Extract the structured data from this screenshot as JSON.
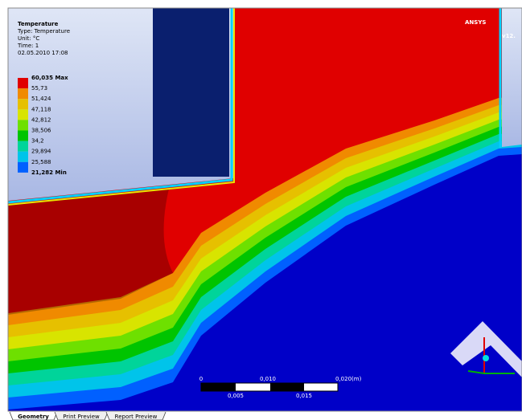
{
  "legend": {
    "title": "Temperature",
    "type": "Type: Temperature",
    "unit": "Unit: °C",
    "time": "Time: 1",
    "date": "02.05.2010 17:08",
    "labels": [
      "60,035 Max",
      "55,73",
      "51,424",
      "47,118",
      "42,812",
      "38,506",
      "34,2",
      "29,894",
      "25,588",
      "21,282 Min"
    ],
    "colors": [
      "#e00000",
      "#f08a00",
      "#e6c000",
      "#d8e400",
      "#6ee000",
      "#00c400",
      "#00d49a",
      "#00c4ea",
      "#0060ff"
    ]
  },
  "logo": {
    "brand": "ANSYS",
    "version": "v12."
  },
  "scale_bar": {
    "top": [
      "0",
      "0,010",
      "0,020(m)"
    ],
    "bottom": [
      "0,005",
      "0,015"
    ]
  },
  "tabs": [
    "Geometry",
    "Print Preview",
    "Report Preview"
  ]
}
